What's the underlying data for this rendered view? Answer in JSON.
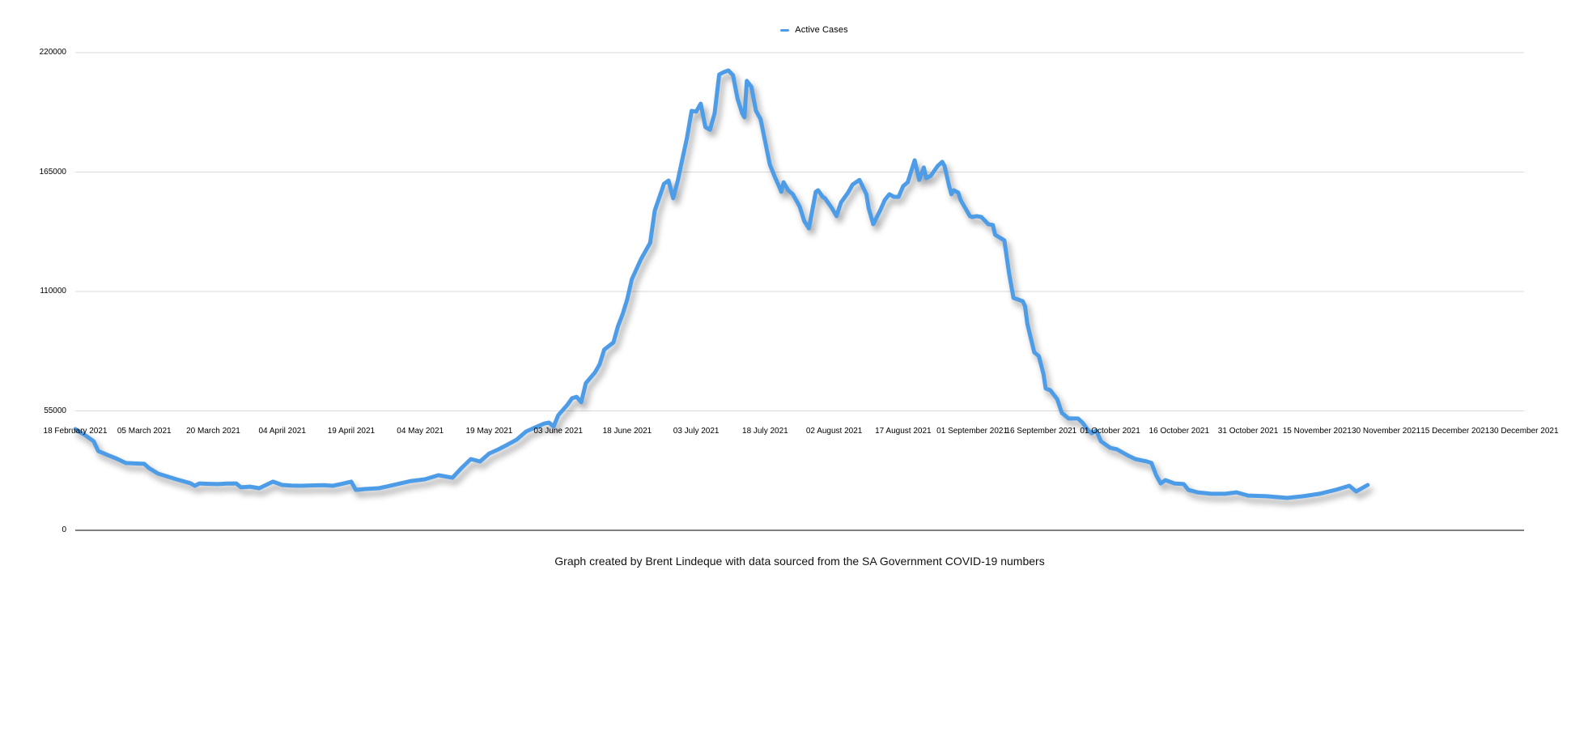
{
  "page": {
    "background": "#ffffff",
    "caption": "Graph created by Brent Lindeque with data sourced from the SA Government COVID-19 numbers"
  },
  "chart_data": {
    "type": "line",
    "title": "",
    "legend_label": "Active Cases",
    "legend_position": "top-center",
    "series_color": "#4d9ce8",
    "grid": true,
    "gridline_color": "#d9d9d9",
    "axis_color": "#000000",
    "text_color": "#000000",
    "x_axis": {
      "start_date": "18 February 2021",
      "end_date": "30 December 2021",
      "tick_interval_days": 15,
      "labels": [
        "18 February 2021",
        "05 March 2021",
        "20 March 2021",
        "04 April 2021",
        "19 April 2021",
        "04 May 2021",
        "19 May 2021",
        "03 June 2021",
        "18 June 2021",
        "03 July 2021",
        "18 July 2021",
        "02 August 2021",
        "17 August 2021",
        "01 September 2021",
        "16 September 2021",
        "01 October 2021",
        "16 October 2021",
        "31 October 2021",
        "15 November 2021",
        "30 November 2021",
        "15 December 2021",
        "30 December 2021"
      ]
    },
    "y_axis": {
      "min": 0,
      "max": 220000,
      "ticks": [
        0,
        55000,
        110000,
        165000,
        220000
      ]
    },
    "series": [
      {
        "name": "Active Cases",
        "x_unit": "days since 18 February 2021",
        "points": [
          [
            0,
            46600
          ],
          [
            1,
            45200
          ],
          [
            2,
            44000
          ],
          [
            4,
            41000
          ],
          [
            5,
            36500
          ],
          [
            7,
            34700
          ],
          [
            9,
            33000
          ],
          [
            11,
            31000
          ],
          [
            13,
            30800
          ],
          [
            15,
            30600
          ],
          [
            16,
            28700
          ],
          [
            18,
            26100
          ],
          [
            20,
            24800
          ],
          [
            22,
            23500
          ],
          [
            25,
            21700
          ],
          [
            26,
            20500
          ],
          [
            27,
            21600
          ],
          [
            29,
            21400
          ],
          [
            31,
            21300
          ],
          [
            33,
            21500
          ],
          [
            35,
            21600
          ],
          [
            36,
            19800
          ],
          [
            38,
            20100
          ],
          [
            40,
            19400
          ],
          [
            43,
            22400
          ],
          [
            45,
            20900
          ],
          [
            47,
            20600
          ],
          [
            49,
            20500
          ],
          [
            52,
            20700
          ],
          [
            54,
            20800
          ],
          [
            56,
            20500
          ],
          [
            58,
            21400
          ],
          [
            60,
            22400
          ],
          [
            61,
            18600
          ],
          [
            63,
            19000
          ],
          [
            66,
            19400
          ],
          [
            68,
            20300
          ],
          [
            70,
            21300
          ],
          [
            73,
            22700
          ],
          [
            76,
            23500
          ],
          [
            79,
            25400
          ],
          [
            82,
            24200
          ],
          [
            84,
            28700
          ],
          [
            86,
            32800
          ],
          [
            88,
            31700
          ],
          [
            90,
            35400
          ],
          [
            92,
            37300
          ],
          [
            94,
            39500
          ],
          [
            96,
            41800
          ],
          [
            98,
            45500
          ],
          [
            100,
            47400
          ],
          [
            102,
            49200
          ],
          [
            103,
            49600
          ],
          [
            104,
            47800
          ],
          [
            105,
            53000
          ],
          [
            107,
            57800
          ],
          [
            108,
            60800
          ],
          [
            109,
            61500
          ],
          [
            110,
            59000
          ],
          [
            111,
            67800
          ],
          [
            113,
            72700
          ],
          [
            114,
            76400
          ],
          [
            115,
            83200
          ],
          [
            117,
            86500
          ],
          [
            118,
            94000
          ],
          [
            119,
            99500
          ],
          [
            120,
            106300
          ],
          [
            121,
            115600
          ],
          [
            123,
            124900
          ],
          [
            125,
            132400
          ],
          [
            126,
            147300
          ],
          [
            128,
            159600
          ],
          [
            129,
            161100
          ],
          [
            130,
            152900
          ],
          [
            131,
            161000
          ],
          [
            132,
            171000
          ],
          [
            133,
            180800
          ],
          [
            134,
            193200
          ],
          [
            135,
            192800
          ],
          [
            136,
            196500
          ],
          [
            137,
            185700
          ],
          [
            138,
            184500
          ],
          [
            139,
            192000
          ],
          [
            140,
            209900
          ],
          [
            141,
            211000
          ],
          [
            142,
            211800
          ],
          [
            143,
            209600
          ],
          [
            144,
            198700
          ],
          [
            145,
            192000
          ],
          [
            145.5,
            190200
          ],
          [
            146,
            207000
          ],
          [
            147,
            204300
          ],
          [
            148,
            193200
          ],
          [
            149,
            189400
          ],
          [
            150,
            179000
          ],
          [
            151,
            168500
          ],
          [
            152,
            163300
          ],
          [
            153,
            158500
          ],
          [
            153.5,
            155900
          ],
          [
            154,
            160300
          ],
          [
            155,
            156600
          ],
          [
            156,
            154800
          ],
          [
            156.5,
            152900
          ],
          [
            157,
            151000
          ],
          [
            157.5,
            149100
          ],
          [
            158.5,
            142400
          ],
          [
            159.5,
            139100
          ],
          [
            161,
            155900
          ],
          [
            161.5,
            156600
          ],
          [
            162.5,
            153600
          ],
          [
            163,
            152900
          ],
          [
            164.5,
            148400
          ],
          [
            165.5,
            144700
          ],
          [
            166.5,
            151000
          ],
          [
            168,
            155500
          ],
          [
            169,
            159200
          ],
          [
            170.5,
            161400
          ],
          [
            172,
            154800
          ],
          [
            172.5,
            148400
          ],
          [
            173.5,
            141000
          ],
          [
            175,
            147300
          ],
          [
            176,
            152100
          ],
          [
            177,
            154800
          ],
          [
            178,
            153600
          ],
          [
            179,
            153600
          ],
          [
            180,
            158500
          ],
          [
            181,
            160300
          ],
          [
            182.5,
            170400
          ],
          [
            183.5,
            161400
          ],
          [
            184.5,
            167100
          ],
          [
            185,
            162200
          ],
          [
            186,
            163300
          ],
          [
            187.5,
            167800
          ],
          [
            188.5,
            169700
          ],
          [
            189,
            167800
          ],
          [
            190,
            158500
          ],
          [
            190.5,
            154800
          ],
          [
            191,
            156600
          ],
          [
            192,
            155500
          ],
          [
            192.5,
            152100
          ],
          [
            193.5,
            148400
          ],
          [
            194.5,
            144700
          ],
          [
            195,
            144300
          ],
          [
            196,
            144700
          ],
          [
            197,
            144300
          ],
          [
            198.5,
            141000
          ],
          [
            199.5,
            140600
          ],
          [
            200,
            136100
          ],
          [
            201.5,
            134200
          ],
          [
            202,
            133500
          ],
          [
            203,
            118600
          ],
          [
            204,
            107000
          ],
          [
            205,
            106300
          ],
          [
            206,
            105500
          ],
          [
            206.5,
            103300
          ],
          [
            207,
            95100
          ],
          [
            208.5,
            82000
          ],
          [
            209.5,
            80200
          ],
          [
            210.5,
            72000
          ],
          [
            211,
            65300
          ],
          [
            212,
            64500
          ],
          [
            213.5,
            60400
          ],
          [
            214.5,
            54100
          ],
          [
            216,
            51500
          ],
          [
            218,
            51500
          ],
          [
            219,
            49600
          ],
          [
            220,
            46600
          ],
          [
            221,
            44700
          ],
          [
            222,
            45900
          ],
          [
            223,
            41000
          ],
          [
            225,
            38000
          ],
          [
            226.5,
            37300
          ],
          [
            229,
            34300
          ],
          [
            230.5,
            32800
          ],
          [
            233,
            31700
          ],
          [
            234,
            31000
          ],
          [
            235,
            25400
          ],
          [
            236,
            21600
          ],
          [
            237,
            23100
          ],
          [
            239,
            21600
          ],
          [
            241,
            21300
          ],
          [
            242,
            18600
          ],
          [
            244,
            17500
          ],
          [
            247,
            16800
          ],
          [
            250,
            16800
          ],
          [
            252.5,
            17500
          ],
          [
            255,
            16000
          ],
          [
            259,
            15700
          ],
          [
            263.5,
            14900
          ],
          [
            267,
            15700
          ],
          [
            270.5,
            16800
          ],
          [
            274,
            18600
          ],
          [
            277,
            20500
          ],
          [
            278.5,
            17900
          ],
          [
            281,
            20900
          ]
        ]
      }
    ]
  }
}
